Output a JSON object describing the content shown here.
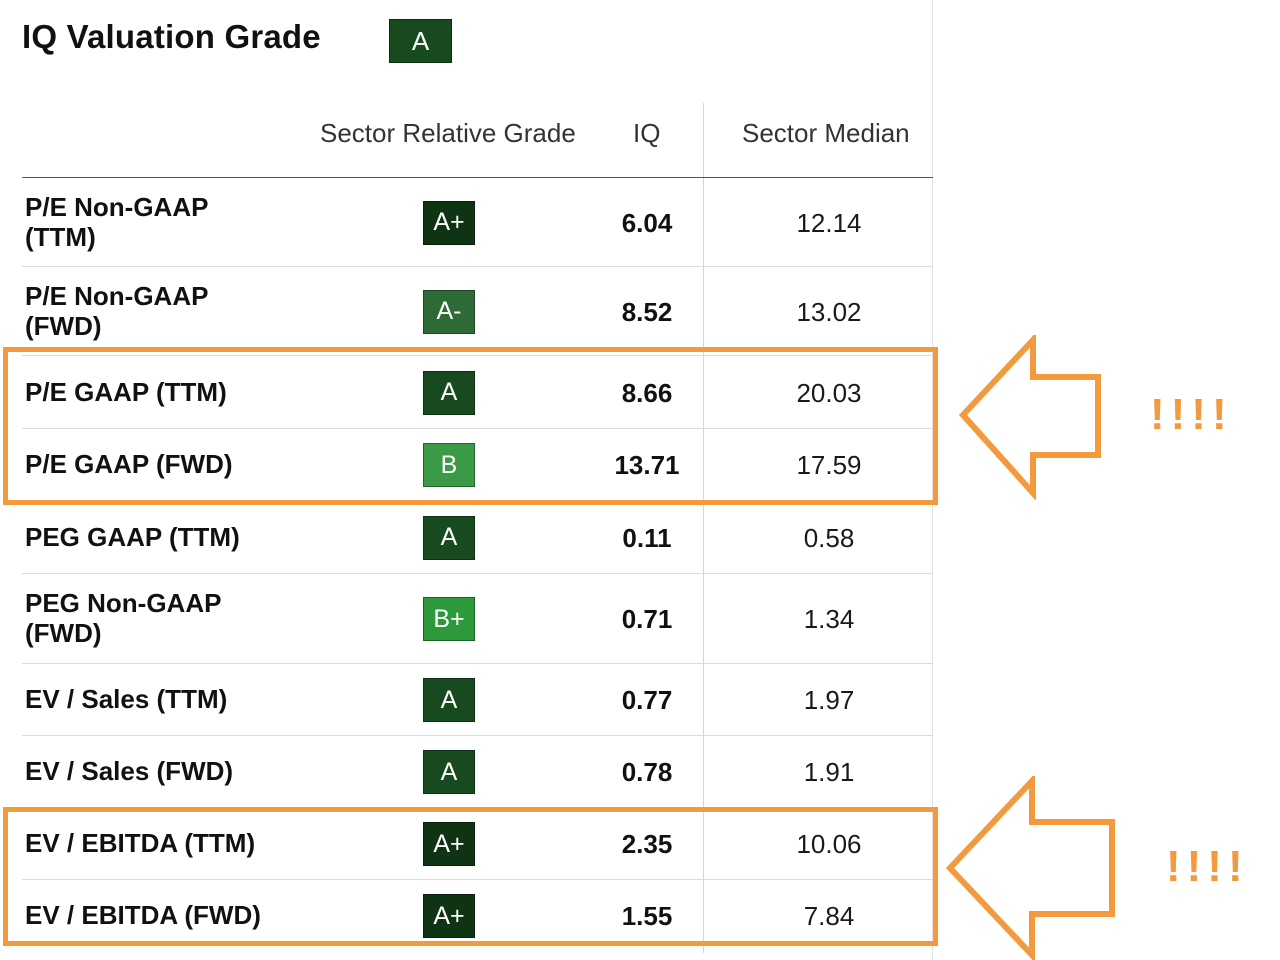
{
  "header": {
    "title": "IQ Valuation Grade",
    "grade": "A"
  },
  "columns": {
    "grade": "Sector Relative Grade",
    "iq": "IQ",
    "median": "Sector Median"
  },
  "rows": [
    {
      "metric": "P/E Non-GAAP\n(TTM)",
      "grade": "A+",
      "iq": "6.04",
      "median": "12.14"
    },
    {
      "metric": "P/E Non-GAAP\n(FWD)",
      "grade": "A-",
      "iq": "8.52",
      "median": "13.02"
    },
    {
      "metric": "P/E GAAP (TTM)",
      "grade": "A",
      "iq": "8.66",
      "median": "20.03"
    },
    {
      "metric": "P/E GAAP (FWD)",
      "grade": "B",
      "iq": "13.71",
      "median": "17.59"
    },
    {
      "metric": "PEG GAAP (TTM)",
      "grade": "A",
      "iq": "0.11",
      "median": "0.58"
    },
    {
      "metric": "PEG Non-GAAP\n(FWD)",
      "grade": "B+",
      "iq": "0.71",
      "median": "1.34"
    },
    {
      "metric": "EV / Sales (TTM)",
      "grade": "A",
      "iq": "0.77",
      "median": "1.97"
    },
    {
      "metric": "EV / Sales (FWD)",
      "grade": "A",
      "iq": "0.78",
      "median": "1.91"
    },
    {
      "metric": "EV / EBITDA (TTM)",
      "grade": "A+",
      "iq": "2.35",
      "median": "10.06"
    },
    {
      "metric": "EV / EBITDA (FWD)",
      "grade": "A+",
      "iq": "1.55",
      "median": "7.84"
    }
  ],
  "annotations": {
    "mark_top": "!!!!",
    "mark_bottom": "!!!!"
  },
  "colors": {
    "A+": "#0f3414",
    "A": "#174a1f",
    "A-": "#2e6a36",
    "B+": "#2c9a3a",
    "B": "#3a9a46",
    "highlight": "#f39a3e"
  }
}
